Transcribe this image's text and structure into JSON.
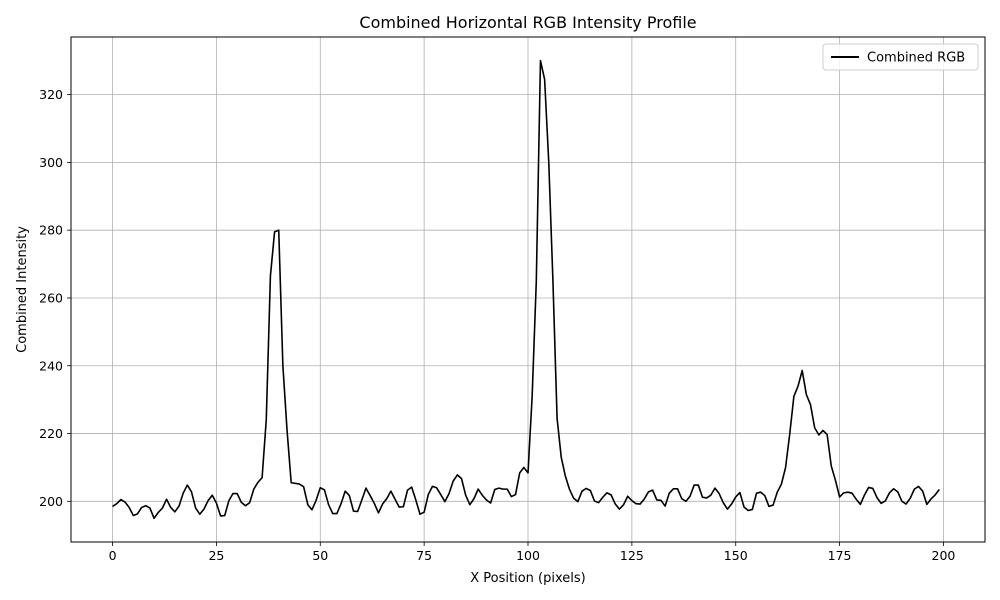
{
  "chart_data": {
    "type": "line",
    "title": "Combined Horizontal RGB Intensity Profile",
    "xlabel": "X Position (pixels)",
    "ylabel": "Combined Intensity",
    "xlim": [
      -10,
      210
    ],
    "ylim": [
      188,
      337
    ],
    "xticks": [
      0,
      25,
      50,
      75,
      100,
      125,
      150,
      175,
      200
    ],
    "yticks": [
      200,
      220,
      240,
      260,
      280,
      300,
      320
    ],
    "grid": true,
    "legend": "top-right",
    "line_color": "#000000",
    "series": [
      {
        "name": "Combined RGB",
        "x": [
          0,
          1,
          2,
          3,
          4,
          5,
          6,
          7,
          8,
          9,
          10,
          11,
          12,
          13,
          14,
          15,
          16,
          17,
          18,
          19,
          20,
          21,
          22,
          23,
          24,
          25,
          26,
          27,
          28,
          29,
          30,
          31,
          32,
          33,
          34,
          35,
          36,
          37,
          38,
          39,
          40,
          41,
          42,
          43,
          44,
          45,
          46,
          47,
          48,
          49,
          50,
          51,
          52,
          53,
          54,
          55,
          56,
          57,
          58,
          59,
          60,
          61,
          62,
          63,
          64,
          65,
          66,
          67,
          68,
          69,
          70,
          71,
          72,
          73,
          74,
          75,
          76,
          77,
          78,
          79,
          80,
          81,
          82,
          83,
          84,
          85,
          86,
          87,
          88,
          89,
          90,
          91,
          92,
          93,
          94,
          95,
          96,
          97,
          98,
          99,
          100,
          101,
          102,
          103,
          104,
          105,
          106,
          107,
          108,
          109,
          110,
          111,
          112,
          113,
          114,
          115,
          116,
          117,
          118,
          119,
          120,
          121,
          122,
          123,
          124,
          125,
          126,
          127,
          128,
          129,
          130,
          131,
          132,
          133,
          134,
          135,
          136,
          137,
          138,
          139,
          140,
          141,
          142,
          143,
          144,
          145,
          146,
          147,
          148,
          149,
          150,
          151,
          152,
          153,
          154,
          155,
          156,
          157,
          158,
          159,
          160,
          161,
          162,
          163,
          164,
          165,
          166,
          167,
          168,
          169,
          170,
          171,
          172,
          173,
          174,
          175,
          176,
          177,
          178,
          179,
          180,
          181,
          182,
          183,
          184,
          185,
          186,
          187,
          188,
          189,
          190,
          191,
          192,
          193,
          194,
          195,
          196,
          197,
          198,
          199
        ],
        "values": [
          198.5,
          199.3,
          200.5,
          199.8,
          198.2,
          195.8,
          196.3,
          198.2,
          198.7,
          198.0,
          195.0,
          196.7,
          198.0,
          200.6,
          198.2,
          196.9,
          198.6,
          202.4,
          204.8,
          202.8,
          198.0,
          196.2,
          197.7,
          200.2,
          201.8,
          199.5,
          195.7,
          195.8,
          200.2,
          202.3,
          202.3,
          199.7,
          198.7,
          199.6,
          203.6,
          205.6,
          207.0,
          224.0,
          266.5,
          279.5,
          280.0,
          240.0,
          221.0,
          205.5,
          205.3,
          205.1,
          204.3,
          199.0,
          197.5,
          200.3,
          204.0,
          203.4,
          199.0,
          196.4,
          196.4,
          199.3,
          203.0,
          201.7,
          197.1,
          197.0,
          200.4,
          203.9,
          201.7,
          199.4,
          196.6,
          199.2,
          200.8,
          203.0,
          200.6,
          198.3,
          198.4,
          203.3,
          204.2,
          200.4,
          196.2,
          196.8,
          202.0,
          204.4,
          204.0,
          202.0,
          199.9,
          202.3,
          206.0,
          207.8,
          206.7,
          201.8,
          199.0,
          200.8,
          203.6,
          201.8,
          200.4,
          199.5,
          203.5,
          203.9,
          203.6,
          203.6,
          201.4,
          202.0,
          208.4,
          210.0,
          208.4,
          231.0,
          265.0,
          330.0,
          324.5,
          300.0,
          265.0,
          224.5,
          213.0,
          207.4,
          203.5,
          200.9,
          199.9,
          203.0,
          203.8,
          203.2,
          200.1,
          199.6,
          201.2,
          202.5,
          201.9,
          199.2,
          197.7,
          199.0,
          201.5,
          200.2,
          199.3,
          199.2,
          200.7,
          202.8,
          203.3,
          200.4,
          200.3,
          198.6,
          202.4,
          203.7,
          203.7,
          200.8,
          200.0,
          201.5,
          204.8,
          204.8,
          201.2,
          201.0,
          201.8,
          203.9,
          202.3,
          199.6,
          197.7,
          199.2,
          201.3,
          202.6,
          198.3,
          197.3,
          197.6,
          202.4,
          202.7,
          201.7,
          198.5,
          198.9,
          202.7,
          205.1,
          210.0,
          219.9,
          231.0,
          234.0,
          238.6,
          231.5,
          228.5,
          221.7,
          219.6,
          220.9,
          219.7,
          210.4,
          206.2,
          201.3,
          202.5,
          202.7,
          202.4,
          200.6,
          199.1,
          201.9,
          204.1,
          203.8,
          201.1,
          199.4,
          200.1,
          202.5,
          203.7,
          202.8,
          200.0,
          199.2,
          200.9,
          203.6,
          204.4,
          203.0,
          199.1,
          200.7,
          201.9,
          203.5
        ]
      }
    ]
  }
}
